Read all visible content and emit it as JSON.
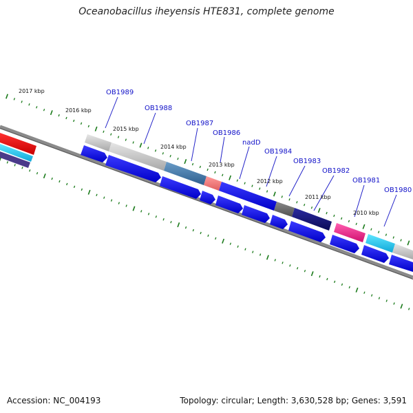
{
  "title": "Oceanobacillus iheyensis HTE831, complete genome",
  "footer": {
    "accession": "Accession: NC_004193",
    "summary": "Topology: circular; Length: 3,630,528 bp; Genes: 3,591"
  },
  "scale_labels": [
    "2017 kbp",
    "2016 kbp",
    "2015 kbp",
    "2014 kbp",
    "2013 kbp",
    "2012 kbp",
    "2011 kbp",
    "2010 kbp"
  ],
  "gene_labels": [
    "OB1989",
    "OB1988",
    "OB1987",
    "OB1986",
    "nadD",
    "OB1984",
    "OB1983",
    "OB1982",
    "OB1981",
    "OB1980"
  ],
  "colors": {
    "backbone": "#7a7a7a",
    "tick": "#1a7a1a",
    "arrow": "#0a0aee",
    "label": "#1010c8"
  }
}
